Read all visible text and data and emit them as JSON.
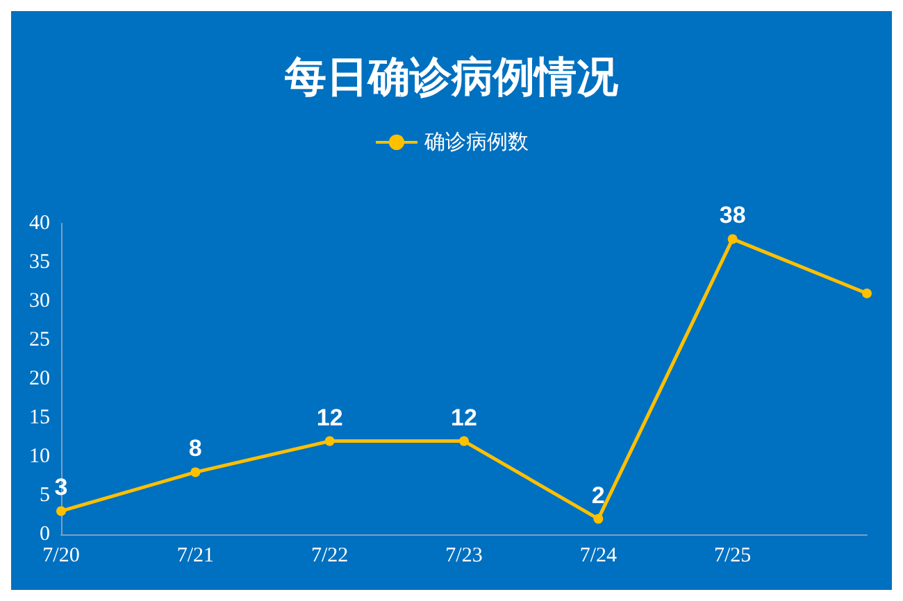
{
  "chart_data": {
    "type": "line",
    "title": "每日确诊病例情况",
    "categories": [
      "7/20",
      "7/21",
      "7/22",
      "7/23",
      "7/24",
      "7/25",
      null
    ],
    "series": [
      {
        "name": "确诊病例数",
        "color": "#ffc000",
        "values": [
          3,
          8,
          12,
          12,
          2,
          38,
          31
        ],
        "value_labels": [
          "3",
          "8",
          "12",
          "12",
          "2",
          "38",
          null
        ]
      }
    ],
    "ylim": [
      0,
      40
    ],
    "yticks": [
      0,
      5,
      10,
      15,
      20,
      25,
      30,
      35,
      40
    ],
    "grid": false,
    "legend": "top",
    "marker": "circle",
    "line_style": "solid"
  }
}
